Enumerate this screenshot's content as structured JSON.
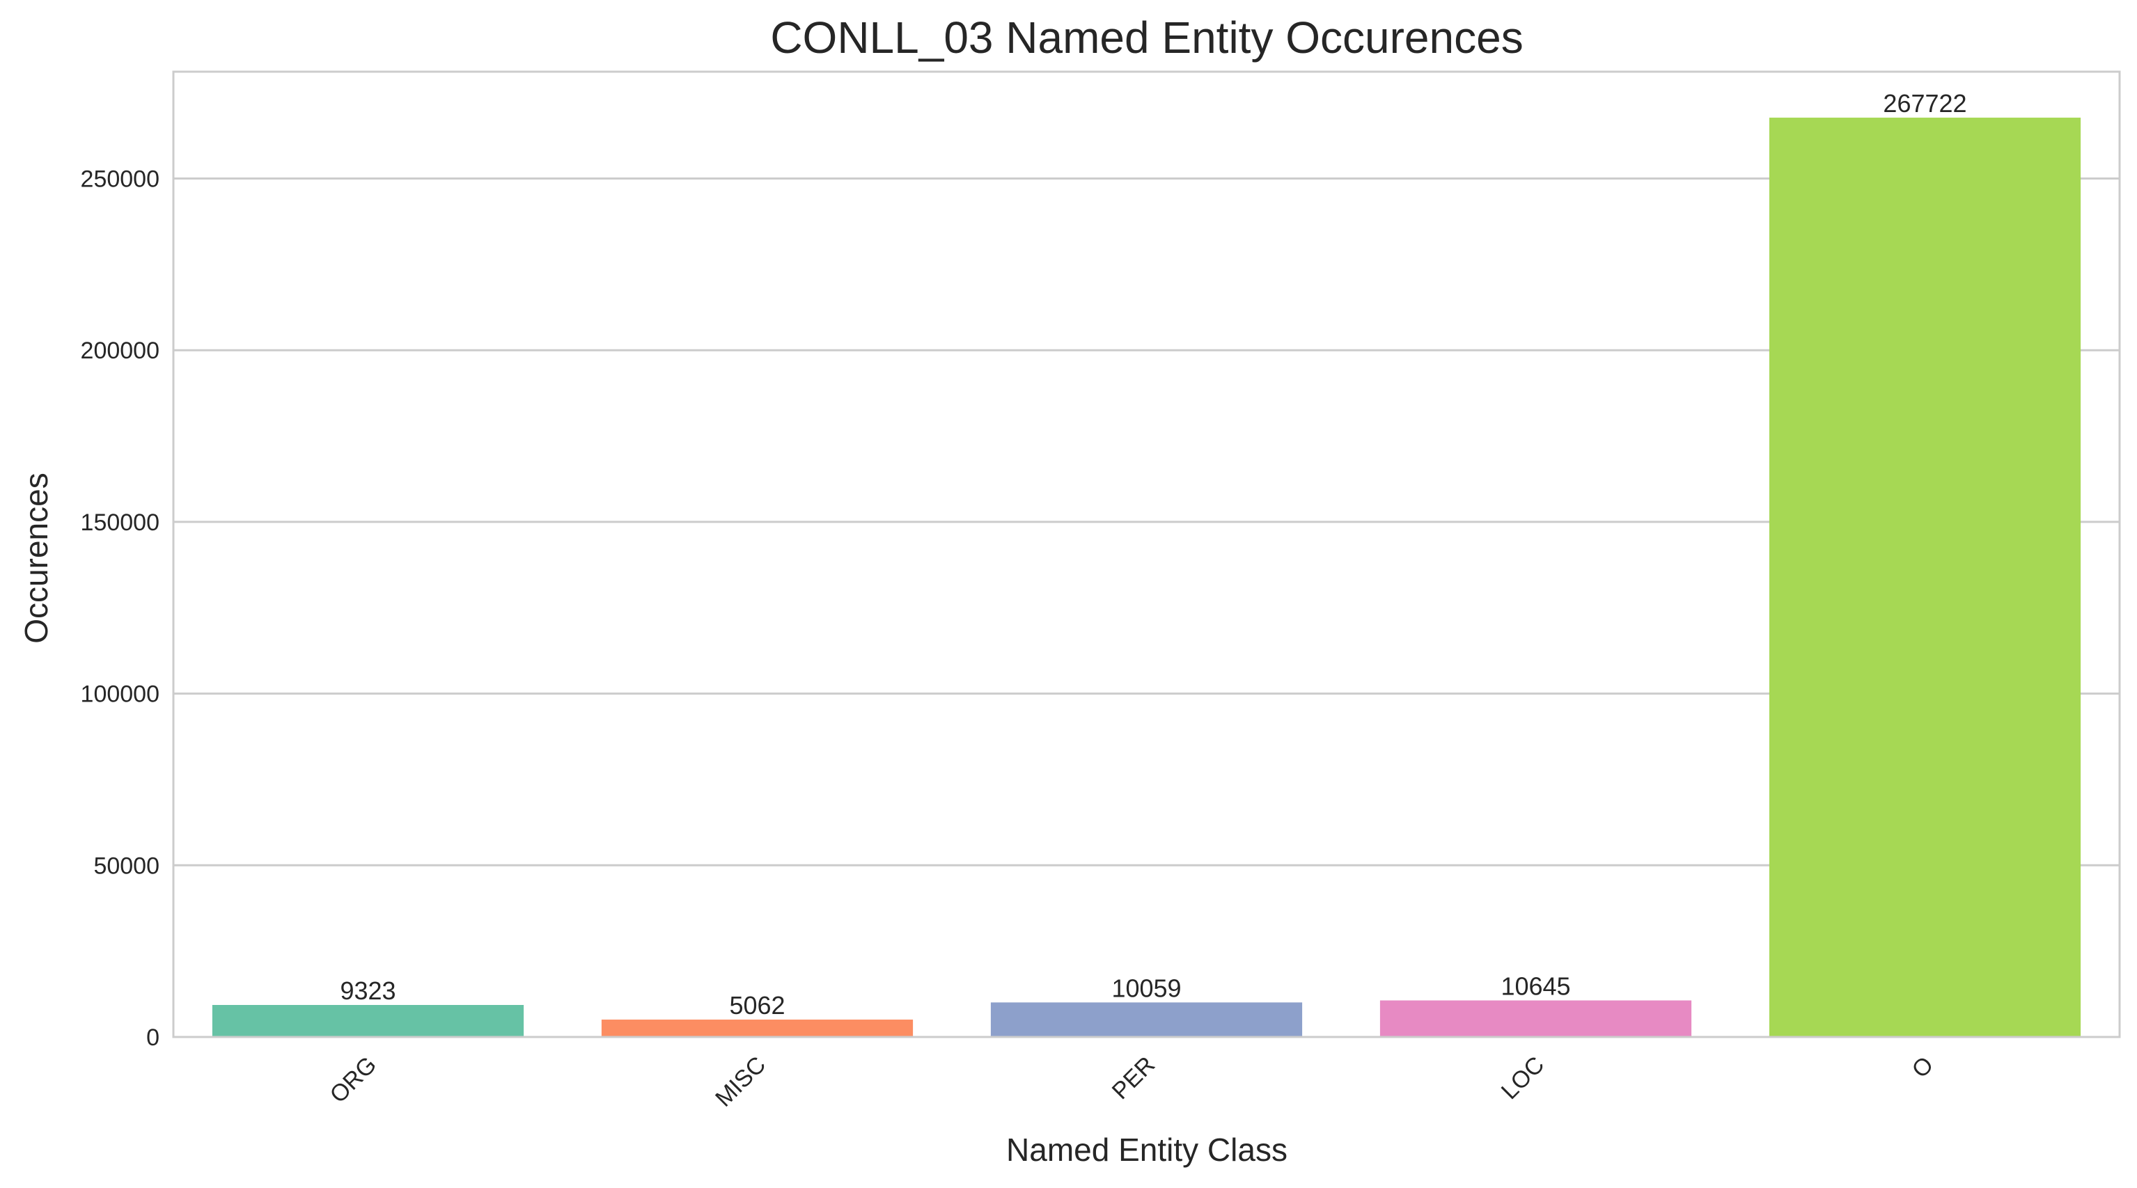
{
  "chart_data": {
    "type": "bar",
    "title": "CONLL_03 Named Entity Occurences",
    "xlabel": "Named Entity Class",
    "ylabel": "Occurences",
    "categories": [
      "ORG",
      "MISC",
      "PER",
      "LOC",
      "O"
    ],
    "values": [
      9323,
      5062,
      10059,
      10645,
      267722
    ],
    "data_labels": [
      "9323",
      "5062",
      "10059",
      "10645",
      "267722"
    ],
    "colors": [
      "#66c2a5",
      "#fc8d62",
      "#8da0cb",
      "#e78ac3",
      "#a6d854"
    ],
    "yticks": [
      0,
      50000,
      100000,
      150000,
      200000,
      250000
    ],
    "ytick_labels": [
      "0",
      "50000",
      "100000",
      "150000",
      "200000",
      "250000"
    ],
    "ylim": [
      0,
      281108
    ],
    "grid": "horizontal",
    "xtick_rotation": "45deg"
  }
}
